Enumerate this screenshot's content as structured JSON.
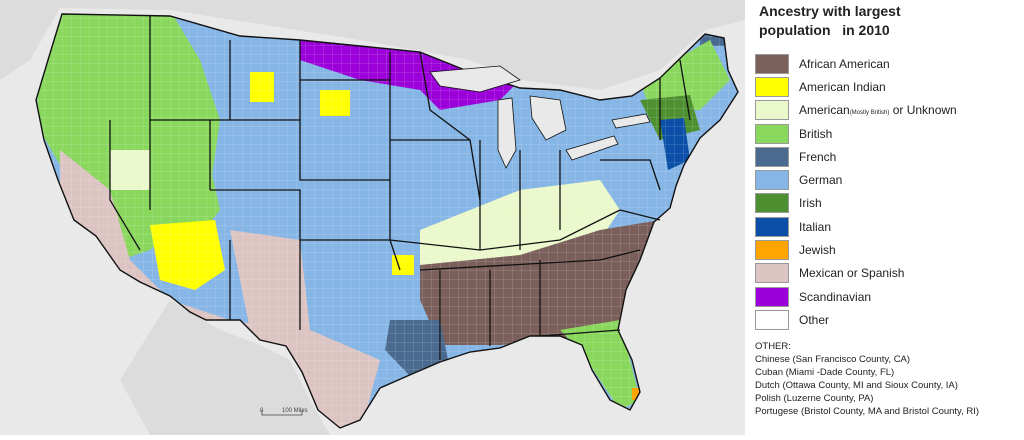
{
  "legend": {
    "title_line1": "Ancestry with largest",
    "title_line2": "population   in 2010",
    "items": [
      {
        "label": "African American",
        "color": "#7a5f5b"
      },
      {
        "label": "American Indian",
        "color": "#ffff00"
      },
      {
        "label": "American",
        "label_small": "(Mostly British)",
        "label_tail": " or Unknown",
        "color": "#eaf8cc"
      },
      {
        "label": "British",
        "color": "#8ad75e"
      },
      {
        "label": "French",
        "color": "#4a6b8f"
      },
      {
        "label": "German",
        "color": "#85b6e6"
      },
      {
        "label": "Irish",
        "color": "#4e8f2f"
      },
      {
        "label": "Italian",
        "color": "#0b4fa8"
      },
      {
        "label": "Jewish",
        "color": "#ffa500"
      },
      {
        "label": "Mexican or Spanish",
        "color": "#dcc4c2"
      },
      {
        "label": "Scandinavian",
        "color": "#9b00d9"
      },
      {
        "label": "Other",
        "color": "#ffffff"
      }
    ],
    "other_heading": "OTHER:",
    "other_list": [
      "Chinese (San Francisco County, CA)",
      "Cuban (Miami -Dade County, FL)",
      "Dutch (Ottawa County, MI and Sioux County, IA)",
      "Polish (Luzerne County, PA)",
      "Portugese (Bristol County, MA and Bristol County, RI)"
    ]
  },
  "scale": {
    "zero": "0",
    "distance": "100 Miles"
  }
}
